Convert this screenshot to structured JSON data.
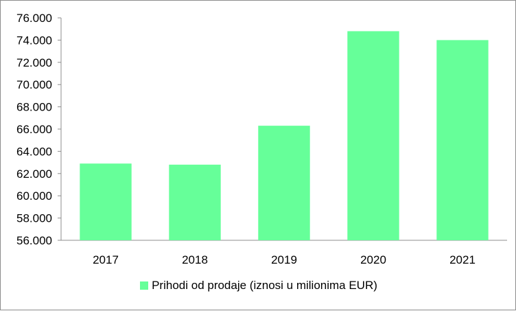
{
  "chart_data": {
    "type": "bar",
    "categories": [
      "2017",
      "2018",
      "2019",
      "2020",
      "2021"
    ],
    "series": [
      {
        "name": "Prihodi od prodaje (iznosi u milionima EUR)",
        "values": [
          62.9,
          62.8,
          66.3,
          74.8,
          74.0
        ],
        "color": "#66ff99"
      }
    ],
    "ylim": [
      56,
      76
    ],
    "yticks": [
      "56.000",
      "58.000",
      "60.000",
      "62.000",
      "64.000",
      "66.000",
      "68.000",
      "70.000",
      "72.000",
      "74.000",
      "76.000"
    ],
    "legend_position": "bottom",
    "grid": false
  }
}
